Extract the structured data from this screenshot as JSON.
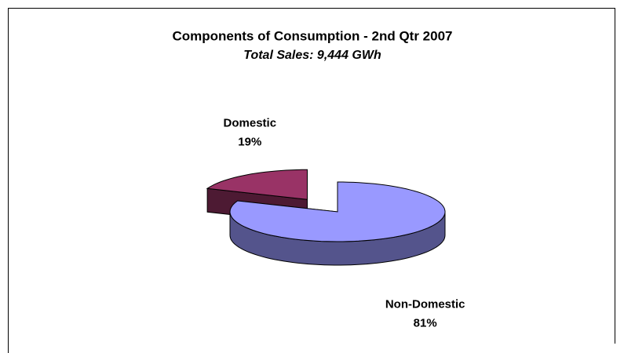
{
  "chart_data": {
    "type": "pie",
    "title": "Components of Consumption - 2nd Qtr 2007",
    "subtitle": "Total Sales: 9,444 GWh",
    "categories": [
      "Domestic",
      "Non-Domestic"
    ],
    "values": [
      19,
      81
    ],
    "value_labels": [
      "19%",
      "81%"
    ],
    "colors": [
      "#993366",
      "#9999ff"
    ]
  }
}
